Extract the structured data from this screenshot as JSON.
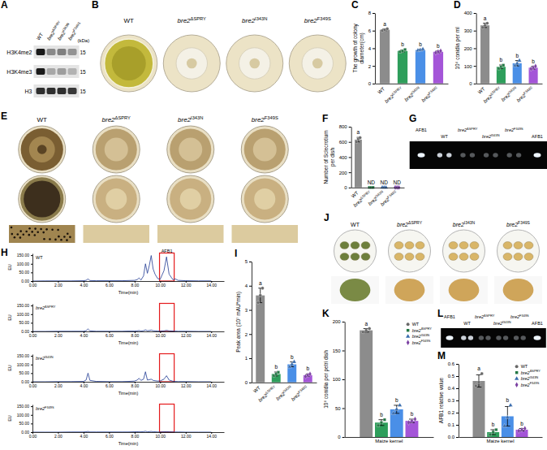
{
  "images": [
    {
      "panel": "A",
      "kind": "blot",
      "lanes": [
        "WT",
        "bre2ΔSPRY",
        "bre2I343N",
        "bre2F349S"
      ],
      "rows": [
        "H3K4me2",
        "H3K4me3",
        "H3"
      ],
      "unit": "(kDa)",
      "sizes": [
        15,
        15,
        15
      ]
    },
    {
      "panel": "B",
      "kind": "colony",
      "lanes": [
        "WT",
        "bre2ΔSPRY",
        "bre2I343N",
        "bre2F349S"
      ]
    },
    {
      "panel": "E",
      "kind": "colony-grid",
      "lanes": [
        "WT",
        "bre2ΔSPRY",
        "bre2I343N",
        "bre2F349S"
      ]
    },
    {
      "panel": "G",
      "kind": "tlc",
      "lanes": [
        "AFB1",
        "WT",
        "bre2ΔSPRY",
        "bre2I343N",
        "bre2F349S",
        "AFB1"
      ]
    },
    {
      "panel": "J",
      "kind": "kernel",
      "lanes": [
        "WT",
        "bre2ΔSPRY",
        "bre2I343N",
        "bre2F349S"
      ]
    },
    {
      "panel": "L",
      "kind": "tlc",
      "lanes": [
        "AFB1",
        "WT",
        "bre2ΔSPRY",
        "bre2I343N",
        "bre2F349S",
        "AFB1"
      ]
    }
  ],
  "chart_data": [
    {
      "panel": "C",
      "type": "bar",
      "ylabel": "The growth of colony diameter(cm)",
      "categories": [
        "WT",
        "bre2ΔSPRY",
        "bre2I343N",
        "bre2F349S"
      ],
      "values": [
        6.1,
        3.7,
        3.8,
        3.6
      ],
      "errors": [
        0.1,
        0.12,
        0.08,
        0.1
      ],
      "points": [
        [
          6.0,
          6.1,
          6.2
        ],
        [
          3.6,
          3.7,
          3.85
        ],
        [
          3.75,
          3.8,
          3.9
        ],
        [
          3.5,
          3.6,
          3.7
        ]
      ],
      "letters": [
        "a",
        "b",
        "b",
        "b"
      ],
      "colors": [
        "#8c8c8c",
        "#2e9e5b",
        "#4a8fe7",
        "#a455d8"
      ],
      "ylim": [
        0,
        8
      ],
      "yticks": [
        0,
        2,
        4,
        6,
        8
      ]
    },
    {
      "panel": "D",
      "type": "bar",
      "ylabel": "10⁶ conidia per ml",
      "categories": [
        "WT",
        "bre2ΔSPRY",
        "bre2I343N",
        "bre2F349S"
      ],
      "values": [
        330,
        95,
        115,
        90
      ],
      "errors": [
        12,
        10,
        15,
        8
      ],
      "points": [
        [
          318,
          330,
          342
        ],
        [
          85,
          95,
          104
        ],
        [
          102,
          113,
          130
        ],
        [
          83,
          90,
          98
        ]
      ],
      "letters": [
        "a",
        "b",
        "b",
        "b"
      ],
      "colors": [
        "#8c8c8c",
        "#2e9e5b",
        "#4a8fe7",
        "#a455d8"
      ],
      "ylim": [
        0,
        400
      ],
      "yticks": [
        0,
        100,
        200,
        300,
        400
      ]
    },
    {
      "panel": "F",
      "type": "bar",
      "ylabel": "Number of Sclecrotium per dish",
      "categories": [
        "WT",
        "bre2ΔSPRY",
        "bre2I343N",
        "bre2F349S"
      ],
      "values": [
        630,
        0,
        0,
        0
      ],
      "errors": [
        30,
        0,
        0,
        0
      ],
      "points": [
        [
          600,
          640,
          655
        ],
        [
          0,
          0,
          0
        ],
        [
          0,
          0,
          0
        ],
        [
          0,
          0,
          0
        ]
      ],
      "letters": [
        "a",
        "ND",
        "ND",
        "ND"
      ],
      "colors": [
        "#8c8c8c",
        "#2e9e5b",
        "#4a8fe7",
        "#a455d8"
      ],
      "ylim": [
        0,
        800
      ],
      "yticks": [
        0,
        200,
        400,
        600,
        800
      ]
    },
    {
      "panel": "I",
      "type": "bar",
      "ylabel": "Peak area (10⁷ mAU*min)",
      "categories": [
        "WT",
        "bre2ΔSPRY",
        "bre2I343N",
        "bre2F349S"
      ],
      "values": [
        3.6,
        0.35,
        0.75,
        0.3
      ],
      "errors": [
        0.3,
        0.08,
        0.1,
        0.05
      ],
      "points": [
        [
          3.3,
          3.6,
          3.9
        ],
        [
          0.28,
          0.35,
          0.42
        ],
        [
          0.65,
          0.75,
          0.85
        ],
        [
          0.25,
          0.3,
          0.35
        ]
      ],
      "letters": [
        "a",
        "b",
        "b",
        "b"
      ],
      "colors": [
        "#8c8c8c",
        "#2e9e5b",
        "#4a8fe7",
        "#a455d8"
      ],
      "ylim": [
        0,
        5
      ],
      "yticks": [
        0,
        1,
        2,
        3,
        4,
        5
      ]
    },
    {
      "panel": "K",
      "type": "bar",
      "ylabel": "10⁶ conidia per petri dish",
      "categories": [
        "Maize kernel"
      ],
      "legend": "top-right",
      "series": [
        {
          "name": "WT",
          "color": "#8c8c8c",
          "values": [
            185
          ],
          "errors": [
            3
          ],
          "points": [
            [
              182,
              185,
              188
            ]
          ],
          "letters": [
            "a"
          ]
        },
        {
          "name": "bre2ΔSPRY",
          "color": "#2e9e5b",
          "values": [
            25
          ],
          "errors": [
            5
          ],
          "points": [
            [
              20,
              25,
              30
            ]
          ],
          "letters": [
            "b"
          ]
        },
        {
          "name": "bre2I343N",
          "color": "#4a8fe7",
          "values": [
            48
          ],
          "errors": [
            7
          ],
          "points": [
            [
              41,
              48,
              55
            ]
          ],
          "letters": [
            "b"
          ]
        },
        {
          "name": "bre2F349S",
          "color": "#a455d8",
          "values": [
            28
          ],
          "errors": [
            3
          ],
          "points": [
            [
              25,
              28,
              31
            ]
          ],
          "letters": [
            "b"
          ]
        }
      ],
      "ylim": [
        0,
        200
      ],
      "yticks": [
        0,
        50,
        100,
        150,
        200
      ]
    },
    {
      "panel": "M",
      "type": "bar",
      "ylabel": "AFB1 relative value",
      "categories": [
        "Maize kernel"
      ],
      "legend": "top-right",
      "series": [
        {
          "name": "WT",
          "color": "#8c8c8c",
          "values": [
            0.46
          ],
          "errors": [
            0.05
          ],
          "points": [
            [
              0.42,
              0.45,
              0.52
            ]
          ],
          "letters": [
            "a"
          ]
        },
        {
          "name": "bre2ΔSPRY",
          "color": "#2e9e5b",
          "values": [
            0.04
          ],
          "errors": [
            0.02
          ],
          "points": [
            [
              0.02,
              0.04,
              0.06
            ]
          ],
          "letters": [
            "b"
          ]
        },
        {
          "name": "bre2I343N",
          "color": "#4a8fe7",
          "values": [
            0.17
          ],
          "errors": [
            0.08
          ],
          "points": [
            [
              0.09,
              0.16,
              0.26
            ]
          ],
          "letters": [
            "b"
          ]
        },
        {
          "name": "bre2F349S",
          "color": "#a455d8",
          "values": [
            0.06
          ],
          "errors": [
            0.01
          ],
          "points": [
            [
              0.05,
              0.06,
              0.07
            ]
          ],
          "letters": [
            "b"
          ]
        }
      ],
      "ylim": [
        0,
        0.6
      ],
      "yticks": [
        {
          "value": 0,
          "label": "0.0"
        },
        0.1,
        0.2,
        0.3,
        0.4,
        0.5,
        0.6
      ]
    },
    {
      "panel": "H",
      "type": "line",
      "xlabel": "Time(min)",
      "ylabel": "EU",
      "x": [
        0,
        1,
        2,
        3,
        4,
        4.2,
        4.35,
        4.5,
        5,
        6,
        7,
        7.5,
        8,
        8.2,
        8.35,
        8.5,
        8.7,
        8.85,
        9,
        9.15,
        9.3,
        9.45,
        9.6,
        9.8,
        10,
        10.3,
        10.5,
        10.7,
        11,
        11.2,
        11.4,
        12,
        13,
        14
      ],
      "xlim": [
        0,
        15
      ],
      "xticks": [
        {
          "value": 0,
          "label": "0.00"
        },
        {
          "value": 2,
          "label": "2.00"
        },
        {
          "value": 4,
          "label": "4.00"
        },
        {
          "value": 6,
          "label": "6.00"
        },
        {
          "value": 8,
          "label": "8.00"
        },
        {
          "value": 10,
          "label": "10.00"
        },
        {
          "value": 12,
          "label": "12.00"
        },
        {
          "value": 14,
          "label": "14.00"
        }
      ],
      "ylim": [
        0,
        160
      ],
      "yticks": [
        {
          "value": 0,
          "label": "0.00"
        },
        {
          "value": 50,
          "label": "50.00"
        },
        {
          "value": 100,
          "label": "100.00"
        },
        {
          "value": 150,
          "label": "150.00"
        }
      ],
      "series": [
        {
          "name": "WT",
          "color": "#1f3a93",
          "values": [
            0,
            1,
            1,
            1,
            2,
            4,
            12,
            3,
            2,
            2,
            2,
            3,
            4,
            8,
            18,
            6,
            30,
            100,
            45,
            90,
            148,
            70,
            40,
            15,
            10,
            60,
            140,
            40,
            8,
            12,
            4,
            2,
            1,
            1
          ]
        }
      ],
      "annotations": [
        {
          "text": "AFB1",
          "x": [
            9.95,
            11.1
          ],
          "color": "#e41a1c"
        }
      ]
    },
    {
      "type": "line",
      "xlabel": "Time(min)",
      "ylabel": "EU",
      "x": [
        0,
        1,
        2,
        3,
        4,
        4.2,
        4.35,
        4.5,
        5,
        6,
        7,
        7.5,
        8,
        8.2,
        8.35,
        8.5,
        8.7,
        8.85,
        9,
        9.15,
        9.3,
        9.45,
        9.6,
        9.8,
        10,
        10.3,
        10.5,
        10.7,
        11,
        11.2,
        11.4,
        12,
        13,
        14
      ],
      "xlim": [
        0,
        15
      ],
      "xticks": [
        {
          "value": 0,
          "label": "0.00"
        },
        {
          "value": 2,
          "label": "2.00"
        },
        {
          "value": 4,
          "label": "4.00"
        },
        {
          "value": 6,
          "label": "6.00"
        },
        {
          "value": 8,
          "label": "8.00"
        },
        {
          "value": 10,
          "label": "10.00"
        },
        {
          "value": 12,
          "label": "12.00"
        },
        {
          "value": 14,
          "label": "14.00"
        }
      ],
      "ylim": [
        0,
        160
      ],
      "yticks": [
        {
          "value": 0,
          "label": "0.00"
        },
        {
          "value": 50,
          "label": "50.00"
        },
        {
          "value": 100,
          "label": "100.00"
        },
        {
          "value": 150,
          "label": "150.00"
        }
      ],
      "series": [
        {
          "name": "bre2ΔSPRY",
          "color": "#1f3a93",
          "values": [
            0,
            0,
            1,
            1,
            1,
            4,
            14,
            3,
            1,
            1,
            1,
            2,
            2,
            3,
            5,
            2,
            4,
            9,
            4,
            5,
            8,
            4,
            3,
            2,
            2,
            3,
            6,
            3,
            2,
            2,
            1,
            1,
            0,
            0
          ]
        }
      ]
    },
    {
      "type": "line",
      "xlabel": "Time(min)",
      "ylabel": "EU",
      "x": [
        0,
        1,
        2,
        3,
        4,
        4.2,
        4.35,
        4.5,
        5,
        6,
        7,
        7.5,
        8,
        8.2,
        8.35,
        8.5,
        8.7,
        8.85,
        9,
        9.15,
        9.3,
        9.45,
        9.6,
        9.8,
        10,
        10.3,
        10.5,
        10.7,
        11,
        11.2,
        11.4,
        12,
        13,
        14
      ],
      "xlim": [
        0,
        15
      ],
      "xticks": [
        {
          "value": 0,
          "label": "0.00"
        },
        {
          "value": 2,
          "label": "2.00"
        },
        {
          "value": 4,
          "label": "4.00"
        },
        {
          "value": 6,
          "label": "6.00"
        },
        {
          "value": 8,
          "label": "8.00"
        },
        {
          "value": 10,
          "label": "10.00"
        },
        {
          "value": 12,
          "label": "12.00"
        },
        {
          "value": 14,
          "label": "14.00"
        }
      ],
      "ylim": [
        0,
        160
      ],
      "yticks": [
        {
          "value": 0,
          "label": "0.00"
        },
        {
          "value": 50,
          "label": "50.00"
        },
        {
          "value": 100,
          "label": "100.00"
        },
        {
          "value": 150,
          "label": "150.00"
        }
      ],
      "series": [
        {
          "name": "bre2I343N",
          "color": "#1f3a93",
          "values": [
            0,
            0,
            1,
            1,
            2,
            10,
            50,
            8,
            2,
            1,
            1,
            2,
            4,
            10,
            20,
            8,
            15,
            58,
            10,
            12,
            15,
            8,
            6,
            4,
            5,
            15,
            35,
            10,
            3,
            2,
            1,
            1,
            0,
            0
          ]
        }
      ]
    },
    {
      "type": "line",
      "xlabel": "Time(min)",
      "ylabel": "EU",
      "x": [
        0,
        1,
        2,
        3,
        4,
        4.2,
        4.35,
        4.5,
        5,
        6,
        7,
        7.5,
        8,
        8.2,
        8.35,
        8.5,
        8.7,
        8.85,
        9,
        9.15,
        9.3,
        9.45,
        9.6,
        9.8,
        10,
        10.3,
        10.5,
        10.7,
        11,
        11.2,
        11.4,
        12,
        13,
        14
      ],
      "xlim": [
        0,
        15
      ],
      "xticks": [
        {
          "value": 0,
          "label": "0.00"
        },
        {
          "value": 2,
          "label": "2.00"
        },
        {
          "value": 4,
          "label": "4.00"
        },
        {
          "value": 6,
          "label": "6.00"
        },
        {
          "value": 8,
          "label": "8.00"
        },
        {
          "value": 10,
          "label": "10.00"
        },
        {
          "value": 12,
          "label": "12.00"
        },
        {
          "value": 14,
          "label": "14.00"
        }
      ],
      "ylim": [
        0,
        160
      ],
      "yticks": [
        {
          "value": 0,
          "label": "0.00"
        },
        {
          "value": 50,
          "label": "50.00"
        },
        {
          "value": 100,
          "label": "100.00"
        },
        {
          "value": 150,
          "label": "150.00"
        }
      ],
      "series": [
        {
          "name": "bre2F349S",
          "color": "#1f3a93",
          "values": [
            0,
            0,
            0,
            1,
            1,
            2,
            4,
            1,
            1,
            1,
            1,
            1,
            2,
            2,
            3,
            2,
            3,
            5,
            2,
            3,
            4,
            2,
            2,
            1,
            1,
            2,
            3,
            2,
            1,
            1,
            1,
            0,
            0,
            0
          ]
        }
      ]
    }
  ]
}
